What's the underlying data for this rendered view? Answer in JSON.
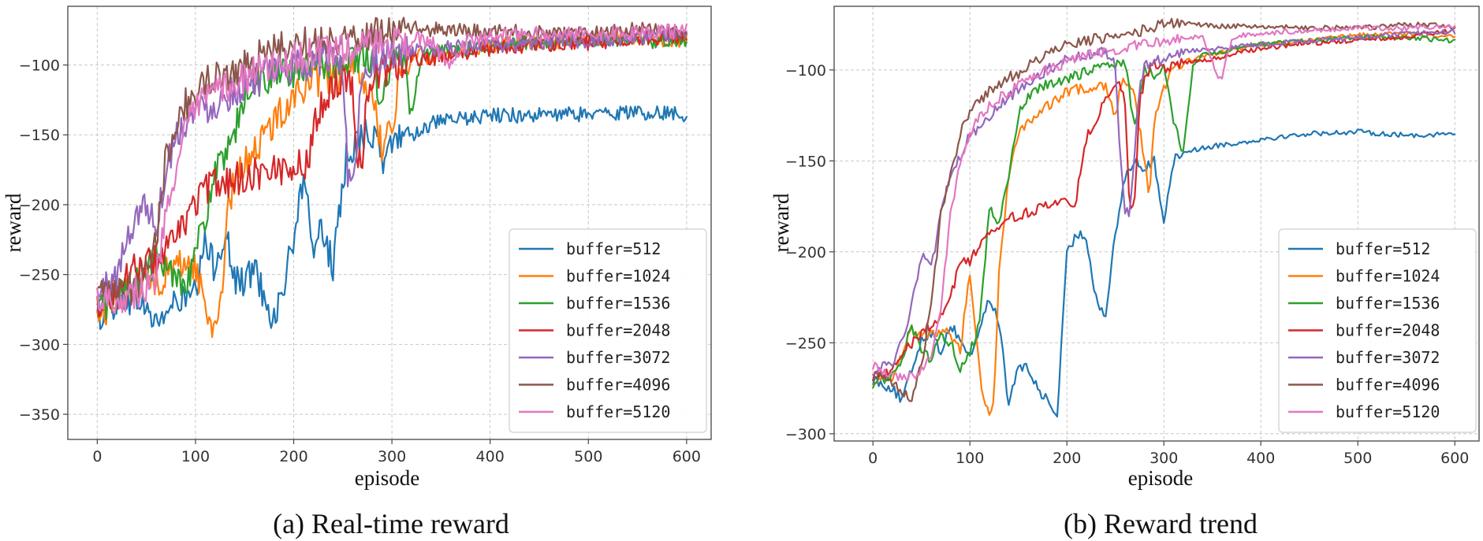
{
  "chart_data": [
    {
      "type": "line",
      "title": "",
      "caption": "(a) Real-time reward",
      "xlabel": "episode",
      "ylabel": "reward",
      "xlim": [
        -30,
        625
      ],
      "ylim": [
        -368,
        -58
      ],
      "xticks": [
        0,
        100,
        200,
        300,
        400,
        500,
        600
      ],
      "yticks": [
        -100,
        -150,
        -200,
        -250,
        -300,
        -350
      ],
      "grid": true,
      "legend_position": "lower-right",
      "noise": 10,
      "series": [
        {
          "name": "buffer=512",
          "color": "#1f77b4",
          "x": [
            0,
            20,
            40,
            60,
            80,
            100,
            110,
            120,
            130,
            140,
            150,
            160,
            170,
            180,
            190,
            200,
            205,
            210,
            215,
            220,
            230,
            240,
            250,
            255,
            260,
            270,
            280,
            290,
            300,
            310,
            320,
            340,
            360,
            380,
            400,
            450,
            500,
            550,
            600
          ],
          "y": [
            -280,
            -270,
            -265,
            -285,
            -270,
            -265,
            -228,
            -245,
            -218,
            -255,
            -255,
            -245,
            -265,
            -282,
            -258,
            -225,
            -198,
            -190,
            -205,
            -228,
            -218,
            -245,
            -190,
            -158,
            -160,
            -148,
            -150,
            -168,
            -158,
            -148,
            -150,
            -142,
            -140,
            -138,
            -136,
            -136,
            -135,
            -134,
            -135
          ]
        },
        {
          "name": "buffer=1024",
          "color": "#ff7f0e",
          "x": [
            0,
            20,
            40,
            60,
            80,
            90,
            100,
            110,
            118,
            125,
            135,
            150,
            170,
            200,
            230,
            250,
            260,
            270,
            280,
            285,
            290,
            300,
            305,
            310,
            320,
            330,
            340,
            360,
            380,
            400,
            450,
            500,
            550,
            600
          ],
          "y": [
            -280,
            -270,
            -255,
            -255,
            -245,
            -240,
            -245,
            -272,
            -290,
            -270,
            -195,
            -168,
            -152,
            -120,
            -110,
            -108,
            -105,
            -108,
            -125,
            -140,
            -160,
            -148,
            -120,
            -100,
            -95,
            -92,
            -95,
            -90,
            -88,
            -86,
            -84,
            -81,
            -80,
            -83
          ]
        },
        {
          "name": "buffer=1536",
          "color": "#2ca02c",
          "x": [
            0,
            20,
            40,
            60,
            80,
            90,
            100,
            110,
            120,
            130,
            140,
            150,
            160,
            180,
            200,
            220,
            240,
            260,
            270,
            280,
            290,
            300,
            310,
            320,
            330,
            340,
            360,
            380,
            400,
            450,
            500,
            550,
            600
          ],
          "y": [
            -275,
            -265,
            -255,
            -240,
            -250,
            -255,
            -235,
            -210,
            -175,
            -170,
            -150,
            -120,
            -112,
            -108,
            -105,
            -100,
            -98,
            -96,
            -92,
            -98,
            -128,
            -95,
            -94,
            -132,
            -96,
            -92,
            -90,
            -88,
            -86,
            -84,
            -82,
            -82,
            -84
          ]
        },
        {
          "name": "buffer=2048",
          "color": "#d62728",
          "x": [
            0,
            20,
            40,
            60,
            80,
            95,
            105,
            120,
            140,
            160,
            180,
            200,
            215,
            220,
            225,
            240,
            255,
            260,
            265,
            270,
            275,
            285,
            290,
            300,
            310,
            320,
            340,
            360,
            380,
            400,
            450,
            500,
            550,
            600
          ],
          "y": [
            -270,
            -260,
            -245,
            -240,
            -225,
            -205,
            -192,
            -185,
            -182,
            -178,
            -175,
            -172,
            -172,
            -145,
            -132,
            -115,
            -108,
            -115,
            -165,
            -165,
            -118,
            -108,
            -105,
            -102,
            -98,
            -96,
            -95,
            -94,
            -90,
            -88,
            -85,
            -84,
            -82,
            -78
          ]
        },
        {
          "name": "buffer=3072",
          "color": "#9467bd",
          "x": [
            0,
            20,
            40,
            50,
            60,
            70,
            80,
            90,
            100,
            120,
            140,
            160,
            180,
            200,
            220,
            240,
            250,
            255,
            260,
            265,
            270,
            275,
            280,
            290,
            300,
            320,
            340,
            360,
            380,
            400,
            450,
            500,
            550,
            600
          ],
          "y": [
            -265,
            -250,
            -205,
            -200,
            -215,
            -175,
            -150,
            -140,
            -132,
            -128,
            -118,
            -110,
            -106,
            -102,
            -98,
            -94,
            -100,
            -175,
            -185,
            -148,
            -108,
            -98,
            -96,
            -95,
            -92,
            -90,
            -89,
            -88,
            -87,
            -86,
            -84,
            -82,
            -80,
            -79
          ]
        },
        {
          "name": "buffer=4096",
          "color": "#8c564b",
          "x": [
            0,
            20,
            40,
            60,
            70,
            80,
            90,
            100,
            110,
            130,
            150,
            170,
            200,
            230,
            260,
            290,
            300,
            320,
            350,
            380,
            400,
            450,
            500,
            550,
            600
          ],
          "y": [
            -265,
            -265,
            -258,
            -225,
            -165,
            -142,
            -128,
            -120,
            -112,
            -108,
            -100,
            -92,
            -85,
            -82,
            -80,
            -76,
            -74,
            -74,
            -75,
            -76,
            -76,
            -77,
            -77,
            -75,
            -76
          ]
        },
        {
          "name": "buffer=5120",
          "color": "#e377c2",
          "x": [
            0,
            20,
            40,
            60,
            70,
            80,
            90,
            100,
            110,
            120,
            140,
            160,
            180,
            200,
            220,
            240,
            260,
            280,
            300,
            320,
            340,
            350,
            360,
            370,
            380,
            400,
            450,
            500,
            550,
            600
          ],
          "y": [
            -265,
            -268,
            -262,
            -255,
            -200,
            -175,
            -148,
            -132,
            -125,
            -120,
            -112,
            -106,
            -100,
            -96,
            -92,
            -90,
            -88,
            -86,
            -84,
            -82,
            -82,
            -95,
            -100,
            -88,
            -82,
            -80,
            -78,
            -77,
            -77,
            -76
          ]
        }
      ]
    },
    {
      "type": "line",
      "title": "",
      "caption": "(b) Reward trend",
      "xlabel": "episode",
      "ylabel": "reward",
      "xlim": [
        -40,
        625
      ],
      "ylim": [
        -304,
        -65
      ],
      "xticks": [
        0,
        100,
        200,
        300,
        400,
        500,
        600
      ],
      "yticks": [
        -100,
        -150,
        -200,
        -250,
        -300
      ],
      "grid": true,
      "legend_position": "lower-right",
      "noise": 2.5,
      "series": [
        {
          "name": "buffer=512",
          "color": "#1f77b4",
          "x": [
            0,
            20,
            30,
            50,
            60,
            70,
            80,
            90,
            100,
            110,
            120,
            130,
            140,
            150,
            160,
            170,
            180,
            190,
            200,
            210,
            220,
            230,
            240,
            250,
            255,
            260,
            270,
            280,
            290,
            300,
            310,
            320,
            340,
            360,
            380,
            400,
            450,
            500,
            550,
            600
          ],
          "y": [
            -270,
            -275,
            -282,
            -248,
            -244,
            -255,
            -240,
            -248,
            -258,
            -242,
            -226,
            -238,
            -285,
            -262,
            -265,
            -275,
            -282,
            -290,
            -202,
            -190,
            -192,
            -225,
            -236,
            -188,
            -178,
            -158,
            -150,
            -155,
            -150,
            -182,
            -150,
            -145,
            -143,
            -141,
            -140,
            -138,
            -135,
            -134,
            -136,
            -135
          ]
        },
        {
          "name": "buffer=1024",
          "color": "#ff7f0e",
          "x": [
            0,
            20,
            40,
            60,
            80,
            90,
            100,
            110,
            115,
            120,
            125,
            130,
            140,
            150,
            160,
            180,
            200,
            220,
            240,
            250,
            255,
            260,
            270,
            280,
            285,
            290,
            300,
            310,
            320,
            340,
            360,
            380,
            400,
            450,
            500,
            550,
            600
          ],
          "y": [
            -270,
            -268,
            -243,
            -245,
            -245,
            -255,
            -210,
            -265,
            -285,
            -288,
            -280,
            -210,
            -160,
            -135,
            -128,
            -120,
            -112,
            -110,
            -108,
            -125,
            -110,
            -105,
            -115,
            -150,
            -168,
            -128,
            -110,
            -100,
            -96,
            -92,
            -90,
            -88,
            -86,
            -84,
            -81,
            -80,
            -82
          ]
        },
        {
          "name": "buffer=1536",
          "color": "#2ca02c",
          "x": [
            0,
            20,
            30,
            40,
            50,
            60,
            70,
            80,
            90,
            100,
            110,
            120,
            130,
            140,
            150,
            160,
            170,
            180,
            200,
            220,
            240,
            260,
            270,
            280,
            290,
            300,
            310,
            320,
            330,
            340,
            360,
            380,
            400,
            450,
            500,
            550,
            600
          ],
          "y": [
            -272,
            -268,
            -258,
            -240,
            -255,
            -260,
            -245,
            -250,
            -265,
            -255,
            -240,
            -175,
            -185,
            -160,
            -125,
            -115,
            -110,
            -108,
            -106,
            -100,
            -98,
            -96,
            -132,
            -98,
            -104,
            -96,
            -128,
            -145,
            -98,
            -92,
            -90,
            -88,
            -86,
            -84,
            -82,
            -82,
            -84
          ]
        },
        {
          "name": "buffer=2048",
          "color": "#d62728",
          "x": [
            0,
            20,
            40,
            60,
            70,
            80,
            90,
            100,
            110,
            120,
            140,
            160,
            180,
            200,
            210,
            215,
            220,
            240,
            255,
            260,
            265,
            270,
            275,
            280,
            290,
            300,
            310,
            320,
            340,
            360,
            380,
            400,
            450,
            500,
            550,
            600
          ],
          "y": [
            -268,
            -265,
            -250,
            -240,
            -235,
            -225,
            -205,
            -206,
            -195,
            -188,
            -182,
            -178,
            -175,
            -173,
            -172,
            -150,
            -138,
            -116,
            -106,
            -118,
            -178,
            -168,
            -118,
            -105,
            -95,
            -100,
            -98,
            -96,
            -95,
            -93,
            -90,
            -88,
            -85,
            -84,
            -82,
            -78
          ]
        },
        {
          "name": "buffer=3072",
          "color": "#9467bd",
          "x": [
            0,
            20,
            30,
            40,
            50,
            60,
            70,
            80,
            90,
            100,
            120,
            140,
            160,
            180,
            200,
            220,
            240,
            250,
            255,
            260,
            265,
            270,
            275,
            280,
            290,
            300,
            320,
            340,
            360,
            380,
            400,
            450,
            500,
            550,
            600
          ],
          "y": [
            -265,
            -262,
            -250,
            -228,
            -202,
            -210,
            -180,
            -160,
            -148,
            -136,
            -125,
            -115,
            -106,
            -100,
            -94,
            -92,
            -90,
            -98,
            -148,
            -178,
            -180,
            -145,
            -108,
            -98,
            -96,
            -94,
            -90,
            -89,
            -88,
            -87,
            -86,
            -84,
            -82,
            -80,
            -79
          ]
        },
        {
          "name": "buffer=4096",
          "color": "#8c564b",
          "x": [
            0,
            20,
            40,
            50,
            60,
            70,
            80,
            90,
            100,
            110,
            120,
            130,
            140,
            150,
            160,
            170,
            180,
            200,
            220,
            240,
            260,
            280,
            300,
            320,
            340,
            360,
            380,
            400,
            450,
            500,
            550,
            600
          ],
          "y": [
            -268,
            -272,
            -280,
            -262,
            -230,
            -180,
            -158,
            -135,
            -122,
            -118,
            -112,
            -108,
            -104,
            -102,
            -98,
            -95,
            -92,
            -86,
            -84,
            -82,
            -80,
            -78,
            -74,
            -74,
            -75,
            -76,
            -76,
            -76,
            -77,
            -77,
            -75,
            -76
          ]
        },
        {
          "name": "buffer=5120",
          "color": "#e377c2",
          "x": [
            0,
            20,
            40,
            50,
            60,
            70,
            80,
            90,
            100,
            110,
            120,
            140,
            160,
            180,
            200,
            220,
            240,
            260,
            280,
            300,
            320,
            340,
            350,
            355,
            360,
            365,
            370,
            380,
            400,
            450,
            500,
            550,
            600
          ],
          "y": [
            -262,
            -270,
            -268,
            -265,
            -258,
            -230,
            -180,
            -150,
            -135,
            -125,
            -120,
            -112,
            -106,
            -100,
            -96,
            -92,
            -90,
            -88,
            -86,
            -84,
            -82,
            -82,
            -95,
            -104,
            -104,
            -92,
            -84,
            -81,
            -80,
            -78,
            -77,
            -77,
            -76
          ]
        }
      ]
    }
  ]
}
